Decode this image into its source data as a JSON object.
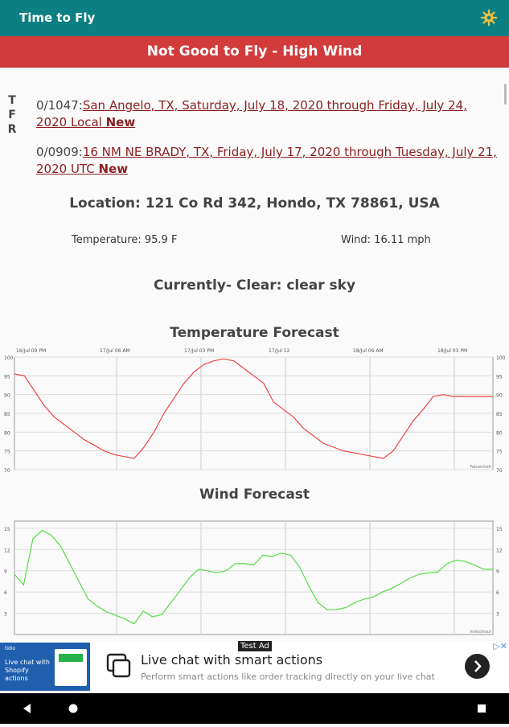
{
  "app": {
    "title": "Time to Fly"
  },
  "status_banner": "Not Good to Fly - High Wind",
  "tfr": {
    "letters": [
      "T",
      "F",
      "R"
    ]
  },
  "notices": [
    {
      "id": "0/1047:",
      "text": "San Angelo, TX, Saturday, July 18, 2020 through Friday, July 24, 2020 Local",
      "badge": "New"
    },
    {
      "id": "0/0909:",
      "text": "16 NM NE BRADY, TX, Friday, July 17, 2020 through Tuesday, July 21, 2020 UTC",
      "badge": "New"
    }
  ],
  "weather": {
    "location": "Location: 121 Co Rd 342, Hondo, TX 78861, USA",
    "temperature": "Temperature: 95.9 F",
    "wind": "Wind: 16.11 mph",
    "current": "Currently- Clear: clear sky"
  },
  "temp_chart": {
    "title": "Temperature Forecast",
    "x_labels": [
      "16/Jul 09 PM",
      "17/Jul 06 AM",
      "17/Jul 03 PM",
      "17/Jul 12",
      "18/Jul 06 AM",
      "18/Jul 03 PM"
    ],
    "y_labels": [
      "100",
      "95",
      "90",
      "85",
      "80",
      "75",
      "70"
    ],
    "unit": "Fahrenheit",
    "color": "#ee4444"
  },
  "wind_chart": {
    "title": "Wind Forecast",
    "y_labels": [
      "15",
      "12",
      "9",
      "6",
      "3"
    ],
    "unit": "miles/hour",
    "color": "#55dd44"
  },
  "chart_data": [
    {
      "type": "line",
      "title": "Temperature Forecast",
      "ylim": [
        70,
        100
      ],
      "series": [
        {
          "values": [
            95.5,
            95,
            91,
            87,
            84,
            82,
            80,
            78,
            76.5,
            75,
            74,
            73.5,
            73,
            76,
            80,
            85,
            89,
            93,
            96,
            98,
            99,
            99.5,
            99,
            97,
            95,
            93,
            88,
            86,
            84,
            81,
            79,
            77,
            76,
            75,
            74.5,
            74,
            73.5,
            73,
            75,
            79,
            83,
            86,
            89.5,
            90,
            89.5,
            89.5,
            89.5,
            89.5,
            89.5
          ]
        }
      ]
    },
    {
      "type": "line",
      "title": "Wind Forecast",
      "ylim": [
        0,
        16
      ],
      "series": [
        {
          "values": [
            8.5,
            7,
            13.5,
            14.7,
            14,
            12.5,
            10,
            7.5,
            5,
            4,
            3.2,
            2.7,
            2.2,
            1.5,
            3.3,
            2.5,
            2.8,
            4.5,
            6.2,
            8,
            9.2,
            9,
            8.7,
            9,
            10,
            10,
            9.8,
            11.2,
            11,
            11.5,
            11.2,
            9.5,
            6.8,
            4.5,
            3.5,
            3.5,
            3.8,
            4.5,
            5,
            5.3,
            6,
            6.5,
            7.2,
            8,
            8.5,
            8.7,
            8.8,
            10,
            10.5,
            10.3,
            9.8,
            9.2,
            9.2
          ]
        }
      ]
    }
  ],
  "ad": {
    "tag": "Test Ad",
    "headline": "Live chat with smart actions",
    "subline": "Perform smart actions like order tracking directly on your live chat",
    "thumb_text": "Live chat with Shopify actions",
    "thumb_brand": "tidio"
  }
}
